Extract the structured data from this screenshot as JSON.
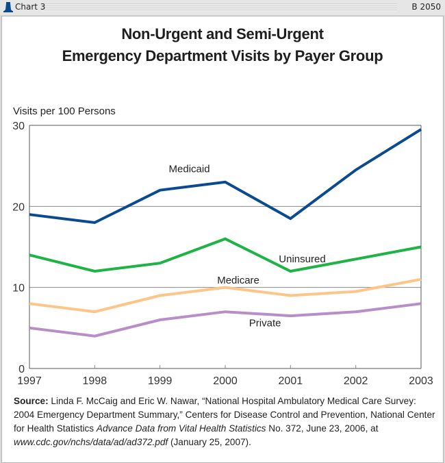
{
  "header": {
    "label": "Chart 3",
    "id": "B 2050",
    "logo_icon": "liberty-bell-icon"
  },
  "chart_data": {
    "type": "line",
    "title_lines": [
      "Non-Urgent and Semi-Urgent",
      "Emergency Department Visits by Payer Group"
    ],
    "ylabel": "Visits per 100 Persons",
    "xlabel": "",
    "x": [
      "1997",
      "1998",
      "1999",
      "2000",
      "2001",
      "2002",
      "2003"
    ],
    "ylim": [
      0,
      30
    ],
    "yticks": [
      0,
      10,
      20,
      30
    ],
    "grid": true,
    "legend": "inline-labels",
    "series": [
      {
        "name": "Medicaid",
        "color": "#0a4a8f",
        "values": [
          19,
          18,
          22,
          23,
          18.5,
          24.5,
          29.5
        ]
      },
      {
        "name": "Uninsured",
        "color": "#1db345",
        "values": [
          14,
          12,
          13,
          16,
          12,
          13.5,
          15
        ]
      },
      {
        "name": "Medicare",
        "color": "#fdc588",
        "values": [
          8,
          7,
          9,
          10,
          9,
          9.5,
          11
        ]
      },
      {
        "name": "Private",
        "color": "#b98dc8",
        "values": [
          5,
          4,
          6,
          7,
          6.5,
          7,
          8
        ]
      }
    ]
  },
  "source": {
    "label": "Source:",
    "text": " Linda F. McCaig and Eric W. Nawar, “National Hospital Ambulatory Medical Care Survey: 2004 Emergency Department Summary,” Centers for Disease Control and Prevention, National Center for Health Statistics ",
    "italic_pub": "Advance Data from Vital Health Statistics",
    "text2": " No. 372, June 23, 2006, at ",
    "italic_url": "www.cdc.gov/nchs/data/ad/ad372.pdf",
    "text3": " (January 25, 2007)."
  }
}
